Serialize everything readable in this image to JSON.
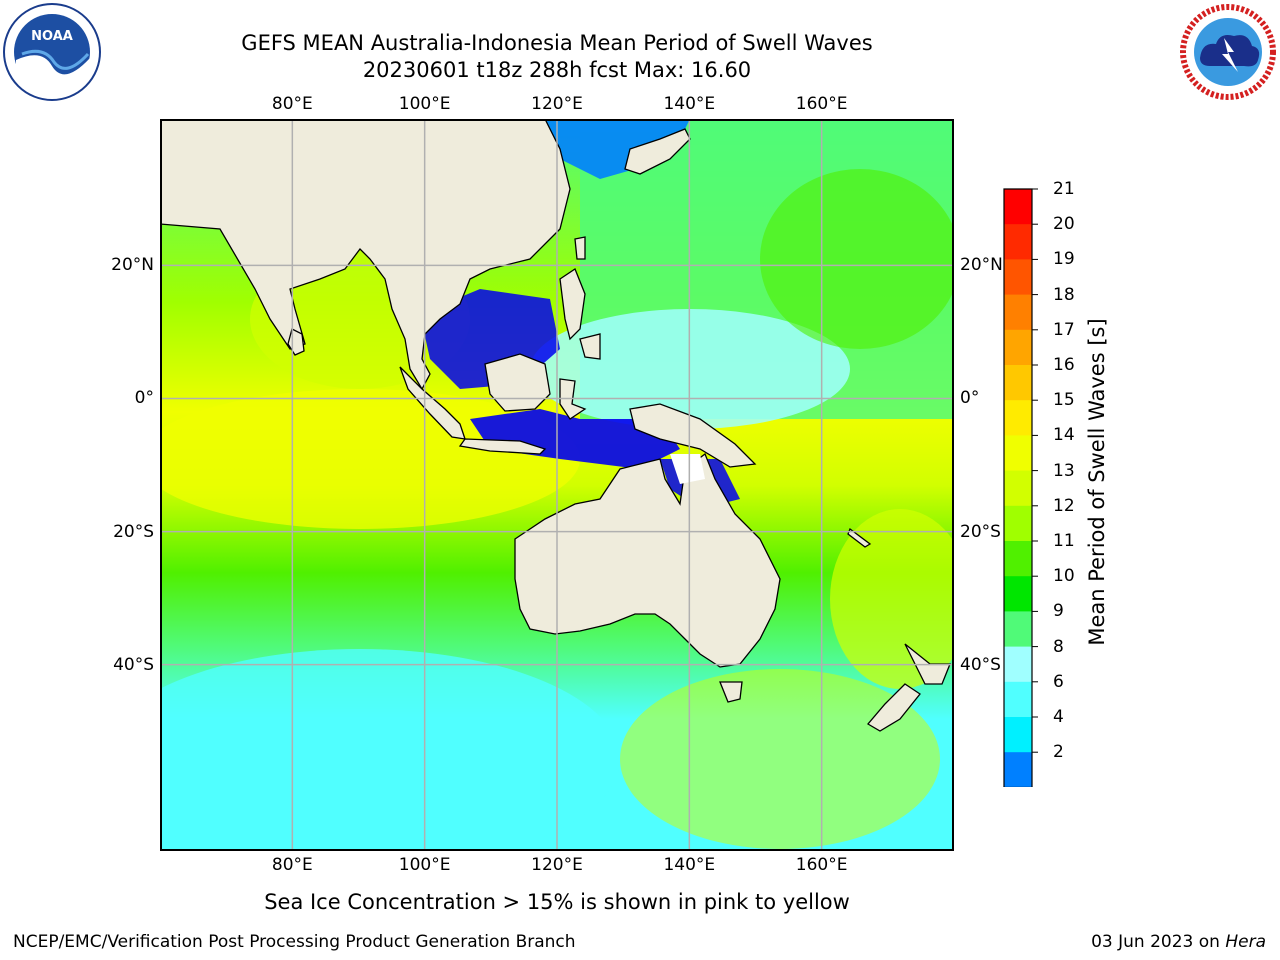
{
  "title": {
    "line1": "GEFS MEAN Australia-Indonesia Mean Period of Swell Waves",
    "line2": "20230601 t18z 288h fcst   Max: 16.60"
  },
  "map": {
    "lon_ticks": [
      "80°E",
      "100°E",
      "120°E",
      "140°E",
      "160°E"
    ],
    "lat_ticks": [
      "20°N",
      "0°",
      "20°S",
      "40°S"
    ],
    "lon_values": [
      80,
      100,
      120,
      140,
      160
    ],
    "lat_values": [
      20,
      0,
      -20,
      -40
    ],
    "lon_range": [
      60,
      180
    ],
    "lat_range": [
      -68,
      42
    ],
    "land_color": "#efecdc",
    "grid_color": "#b0b0b0"
  },
  "colorbar": {
    "title": "Mean Period of Swell Waves [s]",
    "labels": [
      "21",
      "20",
      "19",
      "18",
      "17",
      "16",
      "15",
      "14",
      "13",
      "12",
      "11",
      "10",
      "9",
      "8",
      "6",
      "4",
      "2"
    ],
    "colors": [
      "#ff0000",
      "#ff2a00",
      "#ff5500",
      "#ff8000",
      "#ffa500",
      "#ffc800",
      "#ffeb00",
      "#f0ff00",
      "#d2ff00",
      "#a0ff00",
      "#50f000",
      "#00e600",
      "#50fa78",
      "#a0ffff",
      "#50ffff",
      "#00f0ff",
      "#0080ff"
    ],
    "extend_color": "#0000ee"
  },
  "notes": {
    "sea_ice": "Sea Ice Concentration > 15% is shown in pink to yellow",
    "producer": "NCEP/EMC/Verification Post Processing Product Generation Branch",
    "date": "03 Jun 2023 on",
    "machine": "Hera"
  },
  "logos": {
    "left": "noaa-logo",
    "right": "national-weather-service-logo"
  }
}
